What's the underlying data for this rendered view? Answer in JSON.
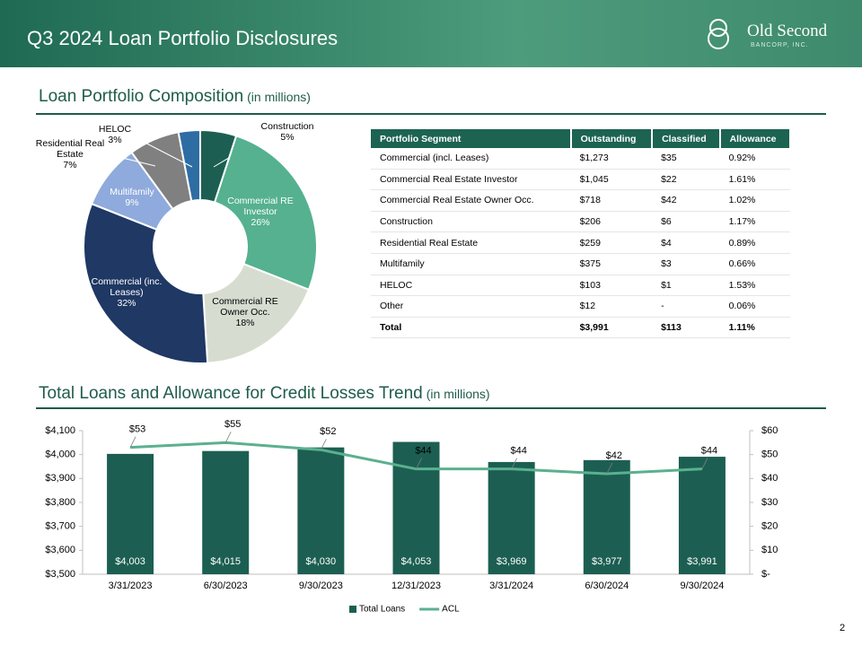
{
  "header": {
    "title": "Q3 2024 Loan Portfolio Disclosures",
    "logo": "Old Second",
    "logo_sub": "BANCORP, INC."
  },
  "sections": [
    {
      "title": "Loan Portfolio Composition",
      "note": "(in millions)"
    },
    {
      "title": "Total Loans and Allowance for Credit Losses Trend",
      "note": "(in millions)"
    }
  ],
  "chart_data": [
    {
      "type": "pie",
      "categories": [
        "Construction",
        "Commercial RE Investor",
        "Commercial RE Owner Occ.",
        "Commercial (inc. Leases)",
        "Multifamily",
        "Residential Real Estate",
        "HELOC"
      ],
      "values": [
        5,
        26,
        18,
        32,
        9,
        7,
        3
      ],
      "value_labels": [
        "5%",
        "26%",
        "18%",
        "32%",
        "9%",
        "7%",
        "3%"
      ],
      "colors": [
        "#1c5f52",
        "#55b18f",
        "#d6ddd0",
        "#1f3864",
        "#8faadc",
        "#808080",
        "#2e6da4"
      ]
    },
    {
      "type": "bar-line",
      "categories": [
        "3/31/2023",
        "6/30/2023",
        "9/30/2023",
        "12/31/2023",
        "3/31/2024",
        "6/30/2024",
        "9/30/2024"
      ],
      "series": [
        {
          "name": "Total Loans",
          "type": "bar",
          "color": "#1c5f52",
          "values": [
            4003,
            4015,
            4030,
            4053,
            3969,
            3977,
            3991
          ],
          "value_labels": [
            "$4,003",
            "$4,015",
            "$4,030",
            "$4,053",
            "$3,969",
            "$3,977",
            "$3,991"
          ]
        },
        {
          "name": "ACL",
          "type": "line",
          "axis": "y2",
          "color": "#5bb08f",
          "values": [
            53,
            55,
            52,
            44,
            44,
            42,
            44
          ],
          "value_labels": [
            "$53",
            "$55",
            "$52",
            "$44",
            "$44",
            "$42",
            "$44"
          ]
        }
      ],
      "ylim": [
        3500,
        4100
      ],
      "yticks": [
        {
          "value": 3500,
          "label": "$3,500"
        },
        {
          "value": 3600,
          "label": "$3,600"
        },
        {
          "value": 3700,
          "label": "$3,700"
        },
        {
          "value": 3800,
          "label": "$3,800"
        },
        {
          "value": 3900,
          "label": "$3,900"
        },
        {
          "value": 4000,
          "label": "$4,000"
        },
        {
          "value": 4100,
          "label": "$4,100"
        }
      ],
      "y2lim": [
        0,
        60
      ],
      "y2ticks": [
        {
          "value": 0,
          "label": "$-"
        },
        {
          "value": 10,
          "label": "$10"
        },
        {
          "value": 20,
          "label": "$20"
        },
        {
          "value": 30,
          "label": "$30"
        },
        {
          "value": 40,
          "label": "$40"
        },
        {
          "value": 50,
          "label": "$50"
        },
        {
          "value": 60,
          "label": "$60"
        }
      ],
      "legend": "bottom"
    }
  ],
  "table": {
    "columns": [
      "Portfolio Segment",
      "Outstanding",
      "Classified",
      "Allowance"
    ],
    "rows": [
      [
        "Commercial (incl. Leases)",
        "$1,273",
        "$35",
        "0.92%"
      ],
      [
        "Commercial Real Estate Investor",
        "$1,045",
        "$22",
        "1.61%"
      ],
      [
        "Commercial Real Estate Owner Occ.",
        "$718",
        "$42",
        "1.02%"
      ],
      [
        "Construction",
        "$206",
        "$6",
        "1.17%"
      ],
      [
        "Residential Real Estate",
        "$259",
        "$4",
        "0.89%"
      ],
      [
        "Multifamily",
        "$375",
        "$3",
        "0.66%"
      ],
      [
        "HELOC",
        "$103",
        "$1",
        "1.53%"
      ],
      [
        "Other",
        "$12",
        "-",
        "0.06%"
      ],
      [
        "Total",
        "$3,991",
        "$113",
        "1.11%"
      ]
    ]
  },
  "page_number": "2"
}
